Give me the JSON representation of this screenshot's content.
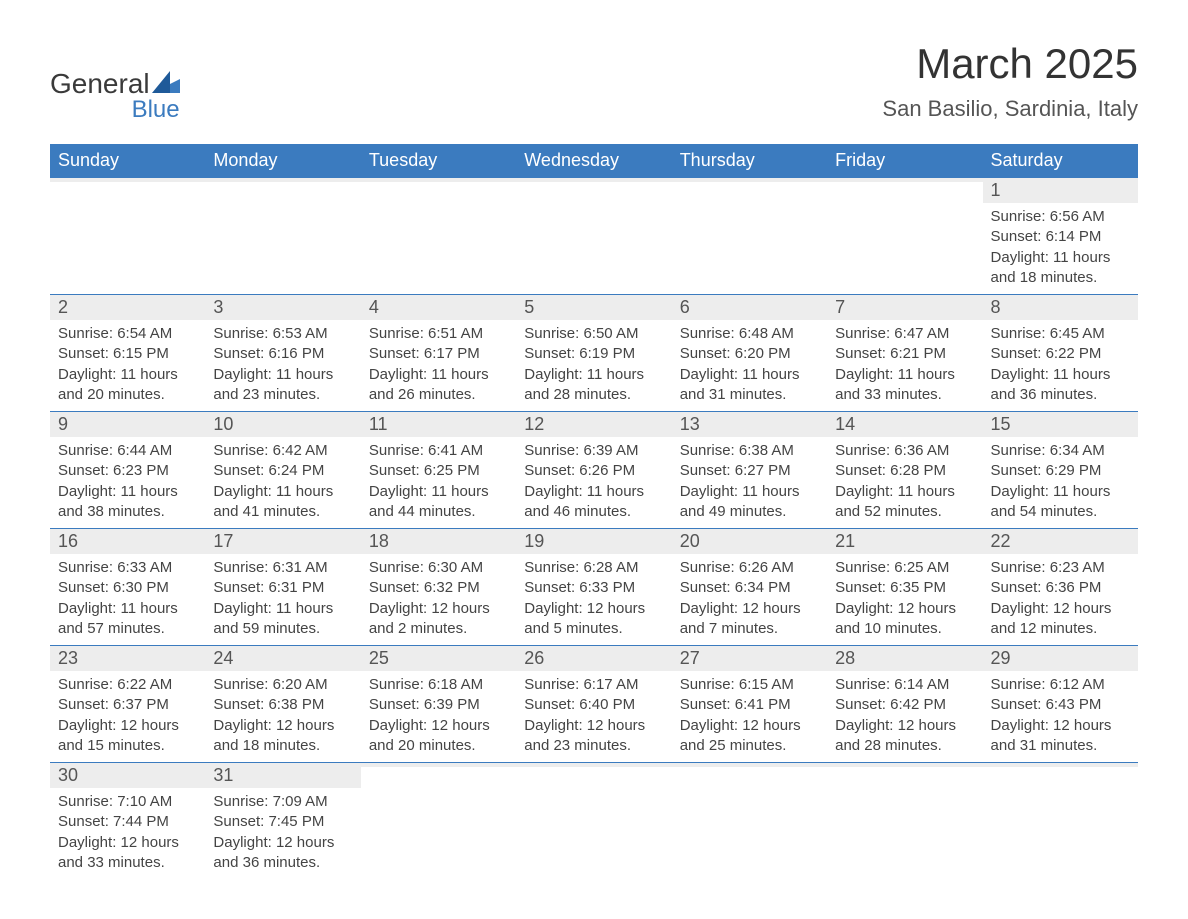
{
  "logo": {
    "general": "General",
    "blue": "Blue"
  },
  "title": "March 2025",
  "location": "San Basilio, Sardinia, Italy",
  "colors": {
    "header_bg": "#3b7bbf",
    "header_text": "#ffffff",
    "daynum_bg": "#ededed",
    "row_divider": "#3b7bbf",
    "body_text": "#444444",
    "title_text": "#333333",
    "logo_accent": "#3b7bbf"
  },
  "typography": {
    "title_fontsize": 42,
    "location_fontsize": 22,
    "header_fontsize": 18,
    "daynum_fontsize": 18,
    "body_fontsize": 15,
    "font_family": "Arial"
  },
  "columns": [
    "Sunday",
    "Monday",
    "Tuesday",
    "Wednesday",
    "Thursday",
    "Friday",
    "Saturday"
  ],
  "weeks": [
    [
      null,
      null,
      null,
      null,
      null,
      null,
      {
        "n": "1",
        "sunrise": "6:56 AM",
        "sunset": "6:14 PM",
        "daylight": "11 hours and 18 minutes."
      }
    ],
    [
      {
        "n": "2",
        "sunrise": "6:54 AM",
        "sunset": "6:15 PM",
        "daylight": "11 hours and 20 minutes."
      },
      {
        "n": "3",
        "sunrise": "6:53 AM",
        "sunset": "6:16 PM",
        "daylight": "11 hours and 23 minutes."
      },
      {
        "n": "4",
        "sunrise": "6:51 AM",
        "sunset": "6:17 PM",
        "daylight": "11 hours and 26 minutes."
      },
      {
        "n": "5",
        "sunrise": "6:50 AM",
        "sunset": "6:19 PM",
        "daylight": "11 hours and 28 minutes."
      },
      {
        "n": "6",
        "sunrise": "6:48 AM",
        "sunset": "6:20 PM",
        "daylight": "11 hours and 31 minutes."
      },
      {
        "n": "7",
        "sunrise": "6:47 AM",
        "sunset": "6:21 PM",
        "daylight": "11 hours and 33 minutes."
      },
      {
        "n": "8",
        "sunrise": "6:45 AM",
        "sunset": "6:22 PM",
        "daylight": "11 hours and 36 minutes."
      }
    ],
    [
      {
        "n": "9",
        "sunrise": "6:44 AM",
        "sunset": "6:23 PM",
        "daylight": "11 hours and 38 minutes."
      },
      {
        "n": "10",
        "sunrise": "6:42 AM",
        "sunset": "6:24 PM",
        "daylight": "11 hours and 41 minutes."
      },
      {
        "n": "11",
        "sunrise": "6:41 AM",
        "sunset": "6:25 PM",
        "daylight": "11 hours and 44 minutes."
      },
      {
        "n": "12",
        "sunrise": "6:39 AM",
        "sunset": "6:26 PM",
        "daylight": "11 hours and 46 minutes."
      },
      {
        "n": "13",
        "sunrise": "6:38 AM",
        "sunset": "6:27 PM",
        "daylight": "11 hours and 49 minutes."
      },
      {
        "n": "14",
        "sunrise": "6:36 AM",
        "sunset": "6:28 PM",
        "daylight": "11 hours and 52 minutes."
      },
      {
        "n": "15",
        "sunrise": "6:34 AM",
        "sunset": "6:29 PM",
        "daylight": "11 hours and 54 minutes."
      }
    ],
    [
      {
        "n": "16",
        "sunrise": "6:33 AM",
        "sunset": "6:30 PM",
        "daylight": "11 hours and 57 minutes."
      },
      {
        "n": "17",
        "sunrise": "6:31 AM",
        "sunset": "6:31 PM",
        "daylight": "11 hours and 59 minutes."
      },
      {
        "n": "18",
        "sunrise": "6:30 AM",
        "sunset": "6:32 PM",
        "daylight": "12 hours and 2 minutes."
      },
      {
        "n": "19",
        "sunrise": "6:28 AM",
        "sunset": "6:33 PM",
        "daylight": "12 hours and 5 minutes."
      },
      {
        "n": "20",
        "sunrise": "6:26 AM",
        "sunset": "6:34 PM",
        "daylight": "12 hours and 7 minutes."
      },
      {
        "n": "21",
        "sunrise": "6:25 AM",
        "sunset": "6:35 PM",
        "daylight": "12 hours and 10 minutes."
      },
      {
        "n": "22",
        "sunrise": "6:23 AM",
        "sunset": "6:36 PM",
        "daylight": "12 hours and 12 minutes."
      }
    ],
    [
      {
        "n": "23",
        "sunrise": "6:22 AM",
        "sunset": "6:37 PM",
        "daylight": "12 hours and 15 minutes."
      },
      {
        "n": "24",
        "sunrise": "6:20 AM",
        "sunset": "6:38 PM",
        "daylight": "12 hours and 18 minutes."
      },
      {
        "n": "25",
        "sunrise": "6:18 AM",
        "sunset": "6:39 PM",
        "daylight": "12 hours and 20 minutes."
      },
      {
        "n": "26",
        "sunrise": "6:17 AM",
        "sunset": "6:40 PM",
        "daylight": "12 hours and 23 minutes."
      },
      {
        "n": "27",
        "sunrise": "6:15 AM",
        "sunset": "6:41 PM",
        "daylight": "12 hours and 25 minutes."
      },
      {
        "n": "28",
        "sunrise": "6:14 AM",
        "sunset": "6:42 PM",
        "daylight": "12 hours and 28 minutes."
      },
      {
        "n": "29",
        "sunrise": "6:12 AM",
        "sunset": "6:43 PM",
        "daylight": "12 hours and 31 minutes."
      }
    ],
    [
      {
        "n": "30",
        "sunrise": "7:10 AM",
        "sunset": "7:44 PM",
        "daylight": "12 hours and 33 minutes."
      },
      {
        "n": "31",
        "sunrise": "7:09 AM",
        "sunset": "7:45 PM",
        "daylight": "12 hours and 36 minutes."
      },
      null,
      null,
      null,
      null,
      null
    ]
  ],
  "labels": {
    "sunrise": "Sunrise: ",
    "sunset": "Sunset: ",
    "daylight": "Daylight: "
  }
}
